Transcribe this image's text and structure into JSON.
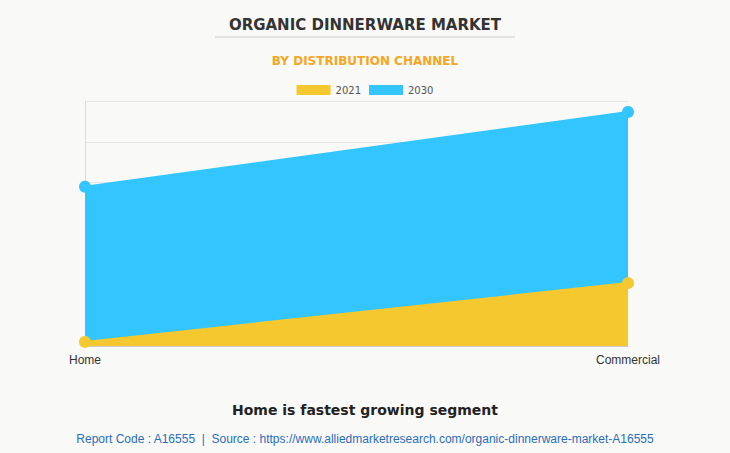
{
  "chart_data": {
    "type": "area",
    "title": "ORGANIC DINNERWARE MARKET",
    "subtitle": "BY DISTRIBUTION CHANNEL",
    "annotations": [
      "Home is fastest growing segment",
      "Report Code : A16555  |  Source : https://www.alliedmarketresearch.com/organic-dinnerware-market-A16555"
    ],
    "categories": [
      "Home",
      "Commercial"
    ],
    "series": [
      {
        "name": "2021",
        "color": "#f5c82f",
        "values": [
          0.1,
          1.54
        ]
      },
      {
        "name": "2030",
        "color": "#33c5fe",
        "values": [
          3.9,
          5.73
        ]
      }
    ],
    "ylim": [
      0,
      6
    ],
    "yticks": [
      0,
      1,
      2,
      3,
      4,
      5,
      6
    ],
    "grid": true,
    "legend": "top",
    "tick_labels": "x",
    "marker": "circle"
  }
}
